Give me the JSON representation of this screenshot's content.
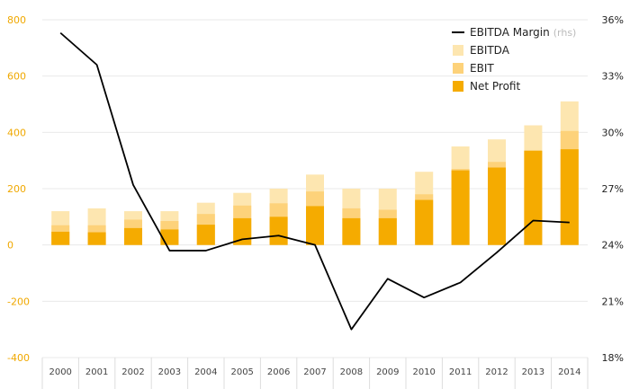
{
  "chart_data": {
    "type": "bar",
    "categories": [
      "2000",
      "2001",
      "2002",
      "2003",
      "2004",
      "2005",
      "2006",
      "2007",
      "2008",
      "2009",
      "2010",
      "2011",
      "2012",
      "2013",
      "2014"
    ],
    "series": [
      {
        "name": "EBITDA",
        "type": "bar",
        "values": [
          120,
          130,
          120,
          120,
          150,
          185,
          200,
          250,
          200,
          200,
          260,
          350,
          375,
          425,
          510
        ],
        "color": "#fde6b0"
      },
      {
        "name": "EBIT",
        "type": "bar",
        "values": [
          70,
          70,
          90,
          85,
          110,
          140,
          148,
          190,
          130,
          125,
          180,
          270,
          295,
          335,
          405
        ],
        "color": "#fdd27a"
      },
      {
        "name": "Net Profit",
        "type": "bar",
        "values": [
          47,
          45,
          60,
          55,
          72,
          95,
          100,
          138,
          95,
          95,
          160,
          265,
          275,
          335,
          340
        ],
        "color": "#f5ab00"
      },
      {
        "name": "EBITDA Margin",
        "axis": "right",
        "type": "line",
        "values": [
          35.3,
          33.6,
          27.2,
          23.7,
          23.7,
          24.3,
          24.5,
          24.0,
          19.5,
          22.2,
          21.2,
          22.0,
          23.6,
          25.3,
          25.2
        ],
        "color": "#000000"
      }
    ],
    "ylim": [
      -400,
      800
    ],
    "yticks": [
      -400,
      -200,
      0,
      200,
      400,
      600,
      800
    ],
    "ylim_right": [
      18,
      36
    ],
    "yticks_right": [
      "18%",
      "21%",
      "24%",
      "27%",
      "30%",
      "33%",
      "36%"
    ],
    "legend": {
      "position": "top-right",
      "entries": [
        {
          "label": "EBITDA Margin",
          "suffix": "(rhs)",
          "kind": "line",
          "color": "#000000"
        },
        {
          "label": "EBITDA",
          "kind": "box",
          "color": "#fde6b0"
        },
        {
          "label": "EBIT",
          "kind": "box",
          "color": "#fdd27a"
        },
        {
          "label": "Net Profit",
          "kind": "box",
          "color": "#f5ab00"
        }
      ]
    },
    "grid": true,
    "colors": {
      "left_axis_text": "#f0a800",
      "gridline": "#eaeaea"
    }
  }
}
